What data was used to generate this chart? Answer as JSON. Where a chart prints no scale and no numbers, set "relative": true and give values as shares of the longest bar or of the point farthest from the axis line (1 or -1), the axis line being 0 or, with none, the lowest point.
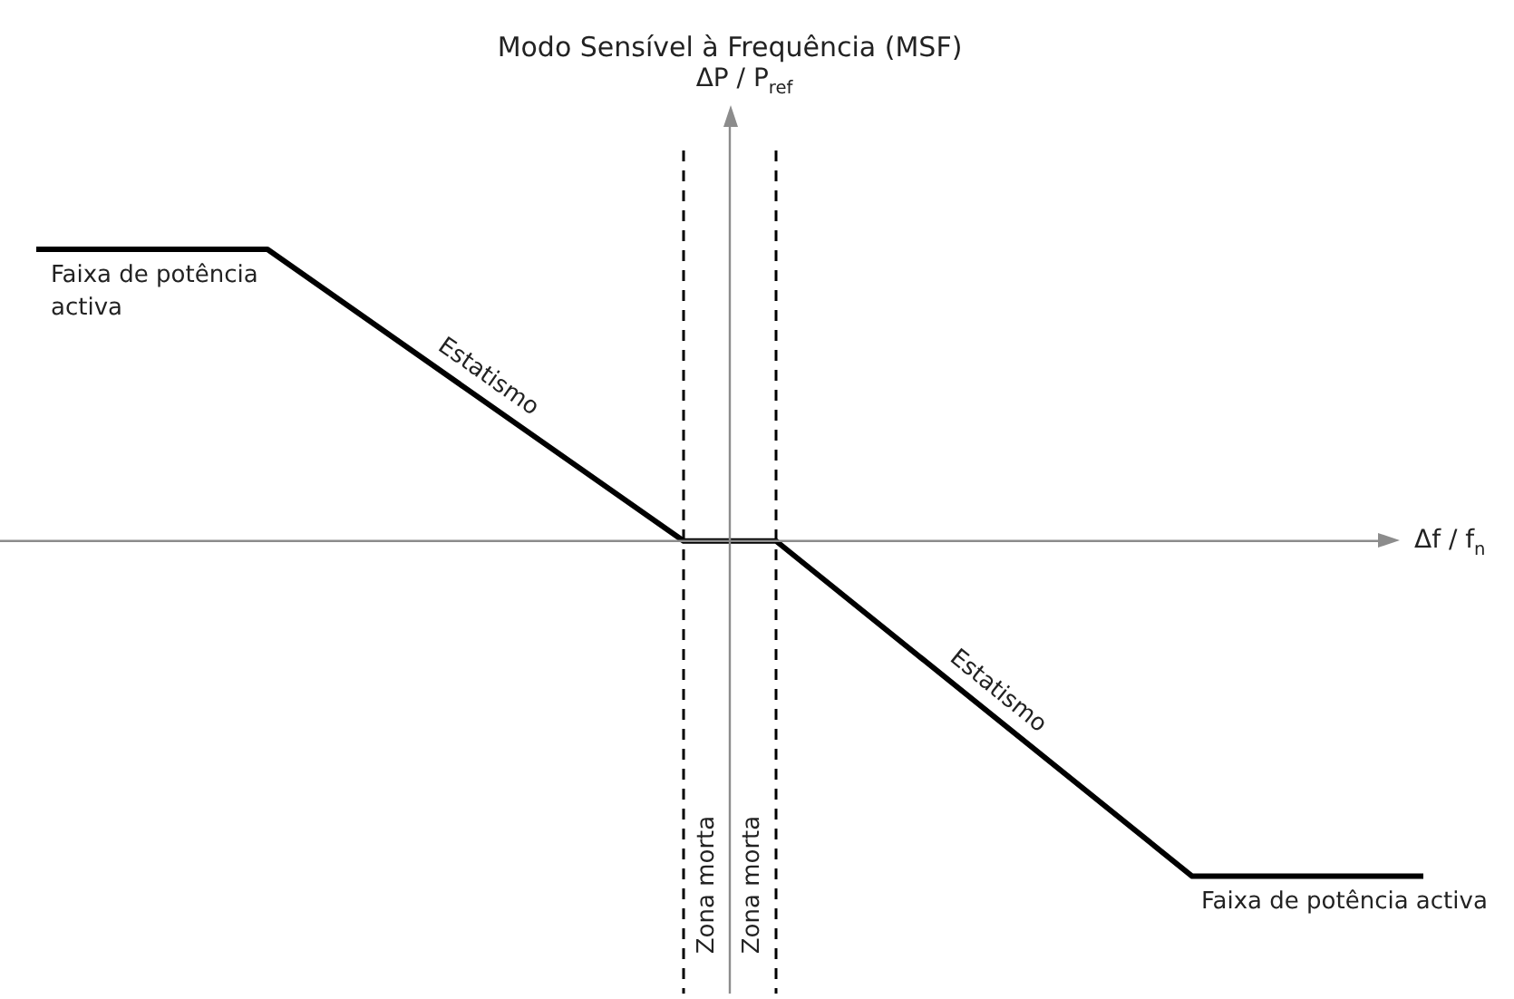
{
  "chart_data": {
    "type": "line",
    "title": "Modo Sensível à Frequência (MSF)",
    "relative": true,
    "categories": [
      null,
      null,
      null,
      null,
      null,
      null,
      null,
      null,
      null,
      null,
      null,
      null,
      null,
      null,
      null,
      null,
      null,
      null,
      null,
      null,
      null,
      null,
      null,
      null,
      null,
      null,
      null,
      null,
      null,
      null,
      null,
      null,
      null,
      null,
      null,
      null,
      null,
      null,
      null,
      null,
      null,
      null,
      null,
      null,
      null,
      null,
      null,
      null,
      null,
      null,
      null,
      null,
      null,
      null,
      null,
      null,
      null,
      null,
      null,
      null,
      null
    ],
    "series": [
      {
        "color": "#000000",
        "values": [
          0.87,
          null,
          null,
          null,
          null,
          null,
          null,
          null,
          null,
          null,
          0.87,
          null,
          null,
          null,
          null,
          null,
          null,
          null,
          null,
          null,
          null,
          null,
          null,
          null,
          null,
          null,
          null,
          null,
          0,
          null,
          null,
          null,
          0,
          null,
          null,
          null,
          null,
          null,
          null,
          null,
          null,
          null,
          null,
          null,
          null,
          null,
          null,
          null,
          null,
          null,
          -1,
          null,
          null,
          null,
          null,
          null,
          null,
          null,
          null,
          null,
          -1
        ]
      }
    ],
    "annotations": [
      "Faixa de potência activa",
      "Estatismo",
      "Estatismo",
      "Faixa de potência activa",
      "Zona morta",
      "Zona morta",
      "ΔP / P$_{ref}$",
      "Δf / f$_{n}$"
    ],
    "tick_labels": false,
    "legend": false,
    "marker": "none",
    "line_style": "solid"
  }
}
